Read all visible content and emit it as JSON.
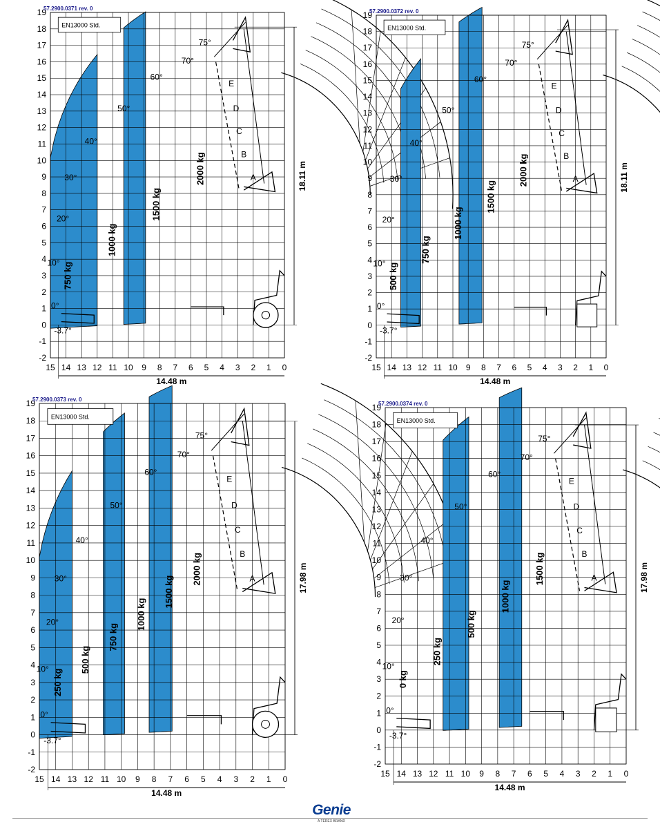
{
  "charts": [
    {
      "doc_code": "57.2900.0371   rev. 0",
      "standard": "EN13000 Std.",
      "height_dim": "18.11 m",
      "reach_dim": "14.48 m",
      "tip_height": 18.11,
      "x_ticks": [
        "15",
        "14",
        "13",
        "12",
        "11",
        "10",
        "9",
        "8",
        "7",
        "6",
        "5",
        "4",
        "3",
        "2",
        "1",
        "0"
      ],
      "y_ticks": [
        "19",
        "18",
        "17",
        "16",
        "15",
        "14",
        "13",
        "12",
        "11",
        "10",
        "9",
        "8",
        "7",
        "6",
        "5",
        "4",
        "3",
        "2",
        "1",
        "0",
        "-1",
        "-2"
      ],
      "angles": [
        "75°",
        "70°",
        "60°",
        "50°",
        "40°",
        "30°",
        "20°",
        "10°",
        "0°",
        "-3.7°"
      ],
      "zone_letters": [
        "E",
        "D",
        "C",
        "B",
        "A"
      ],
      "load_labels": [
        "750 kg",
        "1000 kg",
        "1500 kg",
        "2000 kg"
      ],
      "bands": [
        [
          12,
          15
        ],
        [
          8.9,
          10.3
        ]
      ],
      "wheel": true
    },
    {
      "doc_code": "57.2900.0372   rev. 0",
      "standard": "EN13000 Std.",
      "height_dim": "18.11 m",
      "reach_dim": "14.48 m",
      "tip_height": 18.11,
      "x_ticks": [
        "15",
        "14",
        "13",
        "12",
        "11",
        "10",
        "9",
        "8",
        "7",
        "6",
        "5",
        "4",
        "3",
        "2",
        "1",
        "0"
      ],
      "y_ticks": [
        "19",
        "18",
        "17",
        "16",
        "15",
        "14",
        "13",
        "12",
        "11",
        "10",
        "9",
        "8",
        "7",
        "6",
        "5",
        "4",
        "3",
        "2",
        "1",
        "0",
        "-1",
        "-2"
      ],
      "angles": [
        "75°",
        "70°",
        "60°",
        "50°",
        "40°",
        "30°",
        "20°",
        "10°",
        "0°",
        "-3.7°"
      ],
      "zone_letters": [
        "E",
        "D",
        "C",
        "B",
        "A"
      ],
      "load_labels": [
        "500 kg",
        "750 kg",
        "1000 kg",
        "1500 kg",
        "2000 kg"
      ],
      "bands": [
        [
          12.1,
          13.4
        ],
        [
          8.1,
          9.6
        ]
      ],
      "wheel": false
    },
    {
      "doc_code": "57.2900.0373   rev. 0",
      "standard": "EN13000 Std.",
      "height_dim": "17.98 m",
      "reach_dim": "14.48 m",
      "tip_height": 17.98,
      "x_ticks": [
        "15",
        "14",
        "13",
        "12",
        "11",
        "10",
        "9",
        "8",
        "7",
        "6",
        "5",
        "4",
        "3",
        "2",
        "1",
        "0"
      ],
      "y_ticks": [
        "19",
        "18",
        "17",
        "16",
        "15",
        "14",
        "13",
        "12",
        "11",
        "10",
        "9",
        "8",
        "7",
        "6",
        "5",
        "4",
        "3",
        "2",
        "1",
        "0",
        "-1",
        "-2"
      ],
      "angles": [
        "75°",
        "70°",
        "60°",
        "50°",
        "40°",
        "30°",
        "20°",
        "10°",
        "0°",
        "-3.7°"
      ],
      "zone_letters": [
        "E",
        "D",
        "C",
        "B",
        "A"
      ],
      "load_labels": [
        "250 kg",
        "500 kg",
        "750 kg",
        "1000 kg",
        "1500 kg",
        "2000 kg"
      ],
      "bands": [
        [
          13,
          15
        ],
        [
          9.8,
          11.1
        ],
        [
          6.9,
          8.3
        ]
      ],
      "wheel": true
    },
    {
      "doc_code": "57.2900.0374   rev. 0",
      "standard": "EN13000 Std.",
      "height_dim": "17.98 m",
      "reach_dim": "14.48 m",
      "tip_height": 17.98,
      "x_ticks": [
        "15",
        "14",
        "13",
        "12",
        "11",
        "10",
        "9",
        "8",
        "7",
        "6",
        "5",
        "4",
        "3",
        "2",
        "1",
        "0"
      ],
      "y_ticks": [
        "19",
        "18",
        "17",
        "16",
        "15",
        "14",
        "13",
        "12",
        "11",
        "10",
        "9",
        "8",
        "7",
        "6",
        "5",
        "4",
        "3",
        "2",
        "1",
        "0",
        "-1",
        "-2"
      ],
      "angles": [
        "75°",
        "70°",
        "60°",
        "50°",
        "40°",
        "30°",
        "20°",
        "10°",
        "0°",
        "-3.7°"
      ],
      "zone_letters": [
        "E",
        "D",
        "C",
        "B",
        "A"
      ],
      "load_labels": [
        "0 kg",
        "250 kg",
        "500 kg",
        "1000 kg",
        "1500 kg"
      ],
      "bands": [
        [
          9.8,
          11.4
        ],
        [
          6.5,
          7.9
        ]
      ],
      "wheel": false
    }
  ],
  "footer": {
    "logo": "Genie",
    "tagline": "A TEREX BRAND"
  },
  "colors": {
    "band": "#2c8ccc",
    "grid": "#000000",
    "code": "#1a1a8a",
    "brand": "#0a3d91"
  }
}
